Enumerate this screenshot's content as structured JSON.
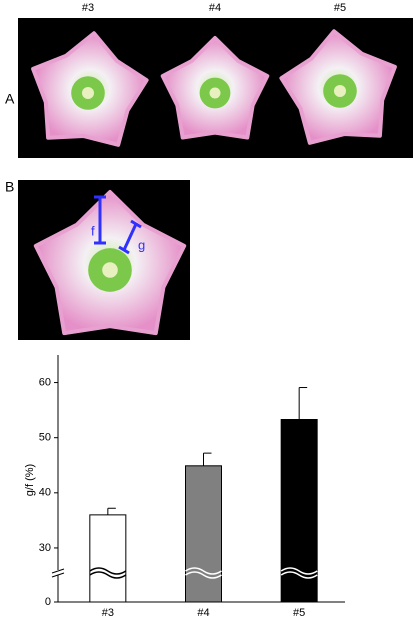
{
  "panel_a": {
    "label": "A",
    "photos": [
      "#3",
      "#4",
      "#5"
    ]
  },
  "panel_b": {
    "label": "B",
    "annotations": [
      "f",
      "g"
    ]
  },
  "chart_data": {
    "type": "bar",
    "y_label": "g/f (%)",
    "categories": [
      "#3",
      "#4",
      "#5"
    ],
    "series": [
      {
        "values": [
          36,
          44.9,
          53.3
        ],
        "errors": [
          1.2,
          2.3,
          5.8
        ],
        "colors": [
          "#ffffff",
          "#808080",
          "#000000"
        ]
      }
    ],
    "ylim": [
      0,
      65
    ],
    "yticks": [
      0,
      30,
      40,
      50,
      60
    ],
    "ybreak": [
      0,
      26
    ]
  }
}
